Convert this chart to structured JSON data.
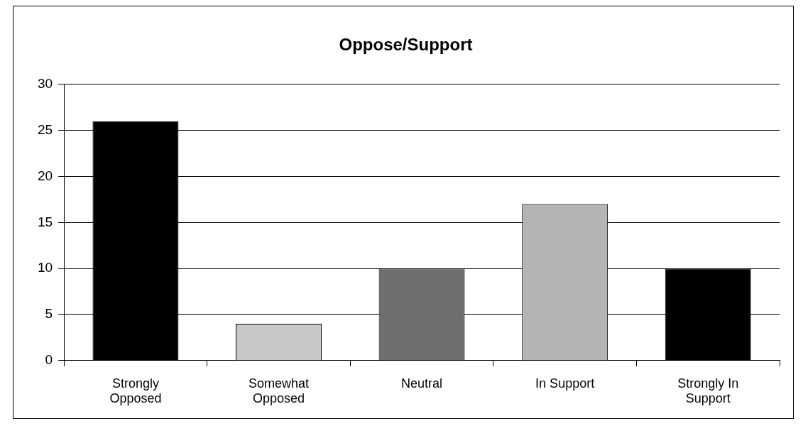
{
  "chart_data": {
    "type": "bar",
    "title": "Oppose/Support",
    "categories": [
      [
        "Strongly",
        "Opposed"
      ],
      [
        "Somewhat",
        "Opposed"
      ],
      [
        "Neutral"
      ],
      [
        "In Support"
      ],
      [
        "Strongly In",
        "Support"
      ]
    ],
    "values": [
      26,
      4,
      10,
      17,
      10
    ],
    "colors": [
      "#000000",
      "#c8c8c8",
      "#6e6e6e",
      "#b4b4b4",
      "#000000"
    ],
    "ylim": [
      0,
      30
    ],
    "yticks": [
      0,
      5,
      10,
      15,
      20,
      25,
      30
    ],
    "grid": "y",
    "legend": false
  }
}
